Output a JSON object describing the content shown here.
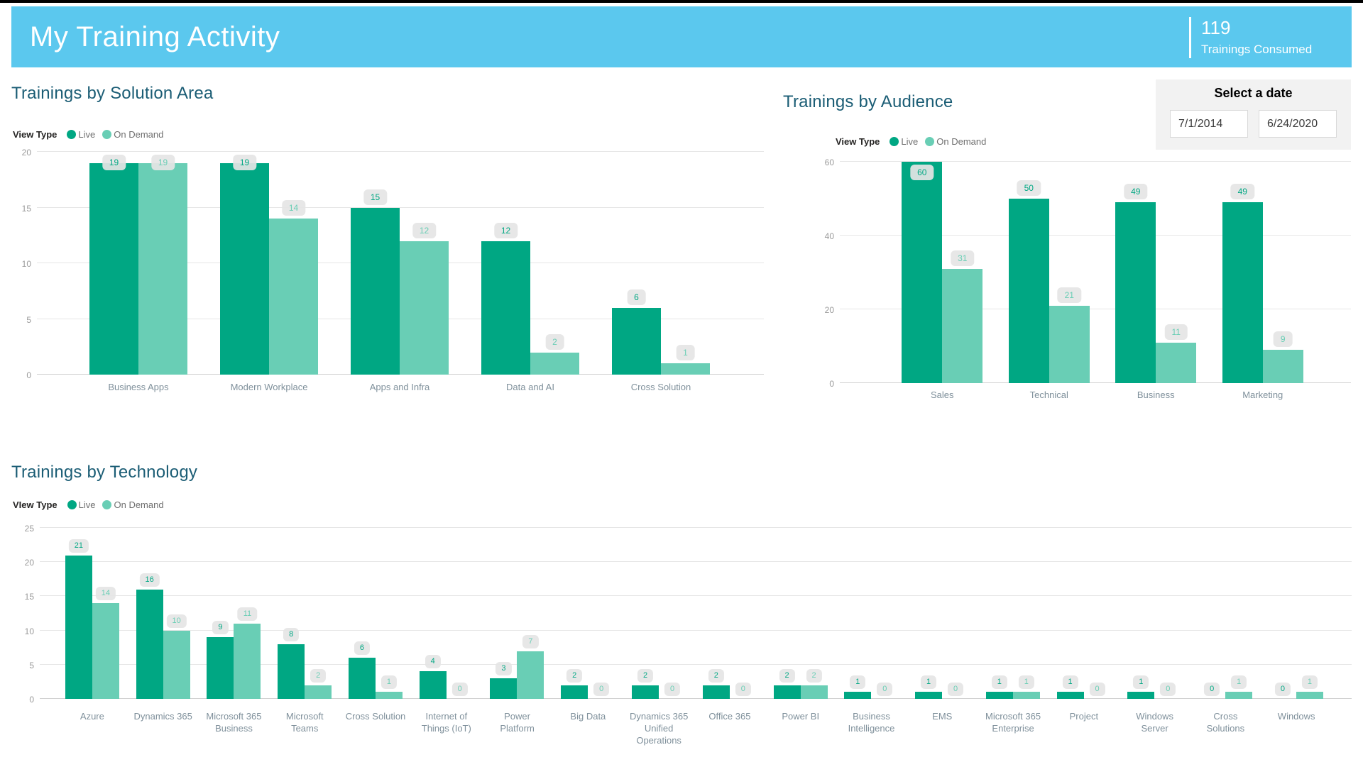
{
  "page": {
    "title": "My Training Activity",
    "kpi": {
      "value": "119",
      "label": "Trainings Consumed"
    }
  },
  "date_slicer": {
    "title": "Select a date",
    "start_date": "7/1/2014",
    "end_date": "6/24/2020"
  },
  "colors": {
    "header_blue": "#5BC8EE",
    "live": "#00A783",
    "on_demand": "#69CEB5",
    "section_title": "#1B5D75",
    "pill_bg": "#E5E5E5"
  },
  "chart_data": [
    {
      "type": "bar",
      "title": "Trainings by Solution Area",
      "legend_label": "View Type",
      "legend_position": "top-left",
      "grid": true,
      "categories": [
        "Business Apps",
        "Modern Workplace",
        "Apps and Infra",
        "Data and AI",
        "Cross Solution"
      ],
      "series": [
        {
          "name": "Live",
          "values": [
            19,
            19,
            15,
            12,
            6
          ]
        },
        {
          "name": "On Demand",
          "values": [
            19,
            14,
            12,
            2,
            1
          ]
        }
      ],
      "yticks": [
        0,
        5,
        10,
        15,
        20
      ],
      "ylim": [
        0,
        20
      ],
      "xlabel": "",
      "ylabel": ""
    },
    {
      "type": "bar",
      "title": "Trainings by Audience",
      "legend_label": "View Type",
      "legend_position": "top-left",
      "grid": true,
      "categories": [
        "Sales",
        "Technical",
        "Business",
        "Marketing"
      ],
      "series": [
        {
          "name": "Live",
          "values": [
            60,
            50,
            49,
            49
          ]
        },
        {
          "name": "On Demand",
          "values": [
            31,
            21,
            11,
            9
          ]
        }
      ],
      "yticks": [
        0,
        20,
        40,
        60
      ],
      "ylim": [
        0,
        60
      ],
      "xlabel": "",
      "ylabel": ""
    },
    {
      "type": "bar",
      "title": "Trainings by Technology",
      "legend_label": "VIew Type",
      "legend_position": "top-left",
      "grid": true,
      "categories": [
        "Azure",
        "Dynamics 365",
        "Microsoft 365 Business",
        "Microsoft Teams",
        "Cross Solution",
        "Internet of Things (IoT)",
        "Power Platform",
        "Big Data",
        "Dynamics 365 Unified Operations",
        "Office 365",
        "Power BI",
        "Business Intelligence",
        "EMS",
        "Microsoft 365 Enterprise",
        "Project",
        "Windows Server",
        "Cross Solutions",
        "Windows"
      ],
      "series": [
        {
          "name": "Live",
          "values": [
            21,
            16,
            9,
            8,
            6,
            4,
            3,
            2,
            2,
            2,
            2,
            1,
            1,
            1,
            1,
            1,
            0,
            0
          ]
        },
        {
          "name": "On Demand",
          "values": [
            14,
            10,
            11,
            2,
            1,
            0,
            7,
            0,
            0,
            0,
            2,
            0,
            0,
            1,
            0,
            0,
            1,
            1
          ]
        }
      ],
      "yticks": [
        0,
        5,
        10,
        15,
        20,
        25
      ],
      "ylim": [
        0,
        25
      ],
      "xlabel": "",
      "ylabel": ""
    }
  ]
}
